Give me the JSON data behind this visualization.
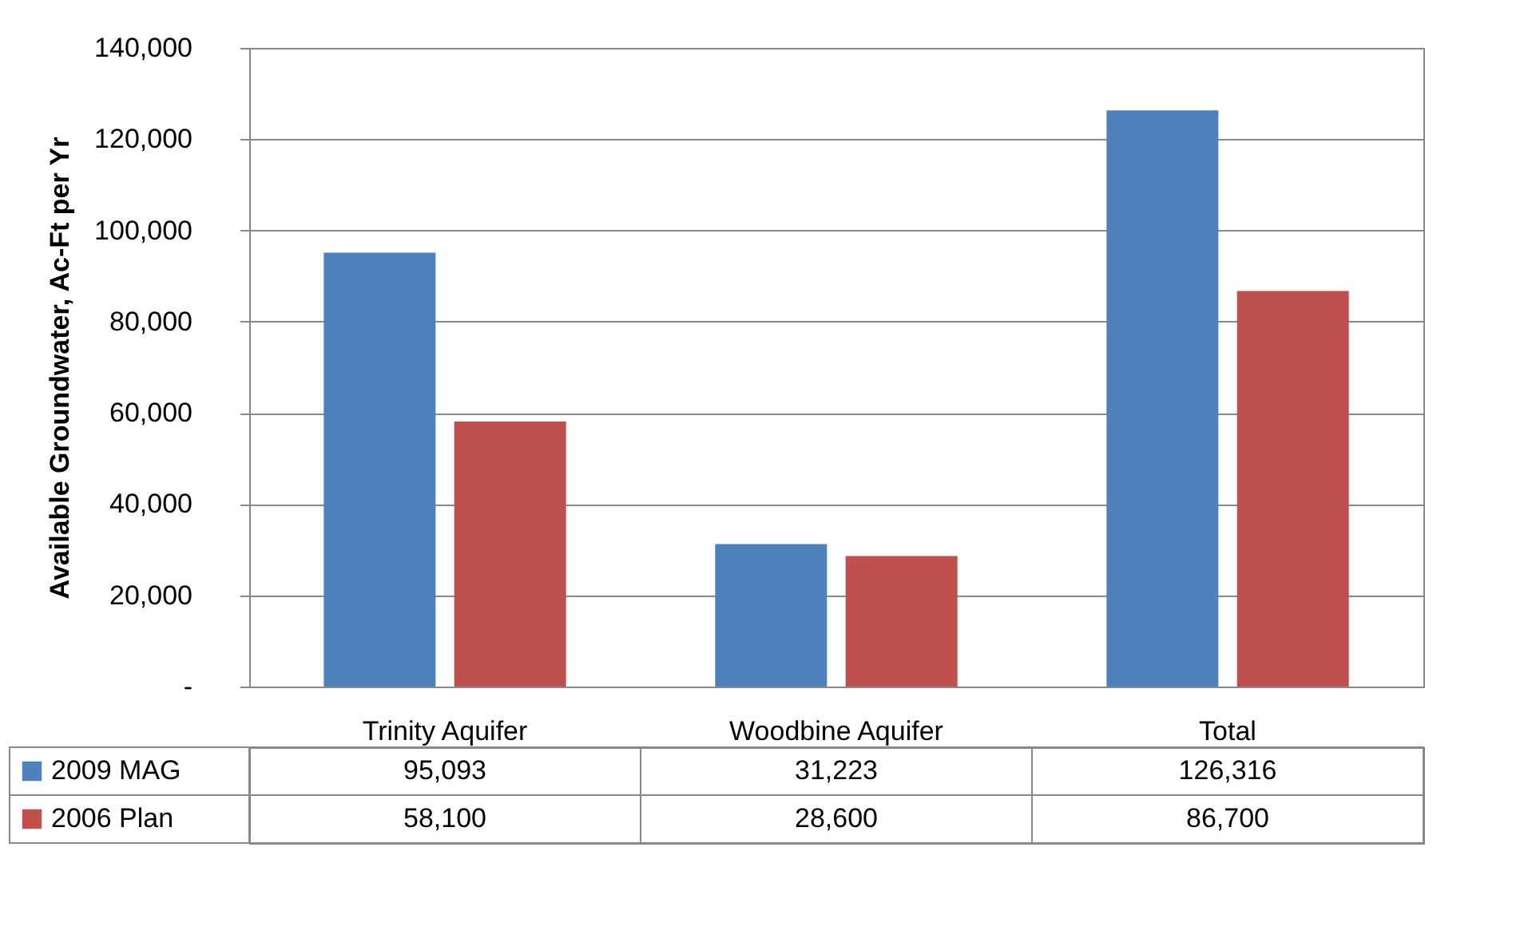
{
  "chart_data": {
    "type": "bar",
    "ylabel": "Available Groundwater, Ac-Ft per Yr",
    "categories": [
      "Trinity Aquifer",
      "Woodbine Aquifer",
      "Total"
    ],
    "series": [
      {
        "name": "2009 MAG",
        "color": "#4f81bd",
        "values": [
          95093,
          31223,
          126316
        ],
        "value_labels": [
          "95,093",
          "31,223",
          "126,316"
        ]
      },
      {
        "name": "2006 Plan",
        "color": "#c0504d",
        "values": [
          58100,
          28600,
          86700
        ],
        "value_labels": [
          "58,100",
          "28,600",
          "86,700"
        ]
      }
    ],
    "ylim": [
      0,
      140000
    ],
    "yticks": [
      {
        "value": 0,
        "label": "-"
      },
      {
        "value": 20000,
        "label": "20,000"
      },
      {
        "value": 40000,
        "label": "40,000"
      },
      {
        "value": 60000,
        "label": "60,000"
      },
      {
        "value": 80000,
        "label": "80,000"
      },
      {
        "value": 100000,
        "label": "100,000"
      },
      {
        "value": 120000,
        "label": "120,000"
      },
      {
        "value": 140000,
        "label": "140,000"
      }
    ],
    "grid": "y",
    "legend": "bottom"
  }
}
